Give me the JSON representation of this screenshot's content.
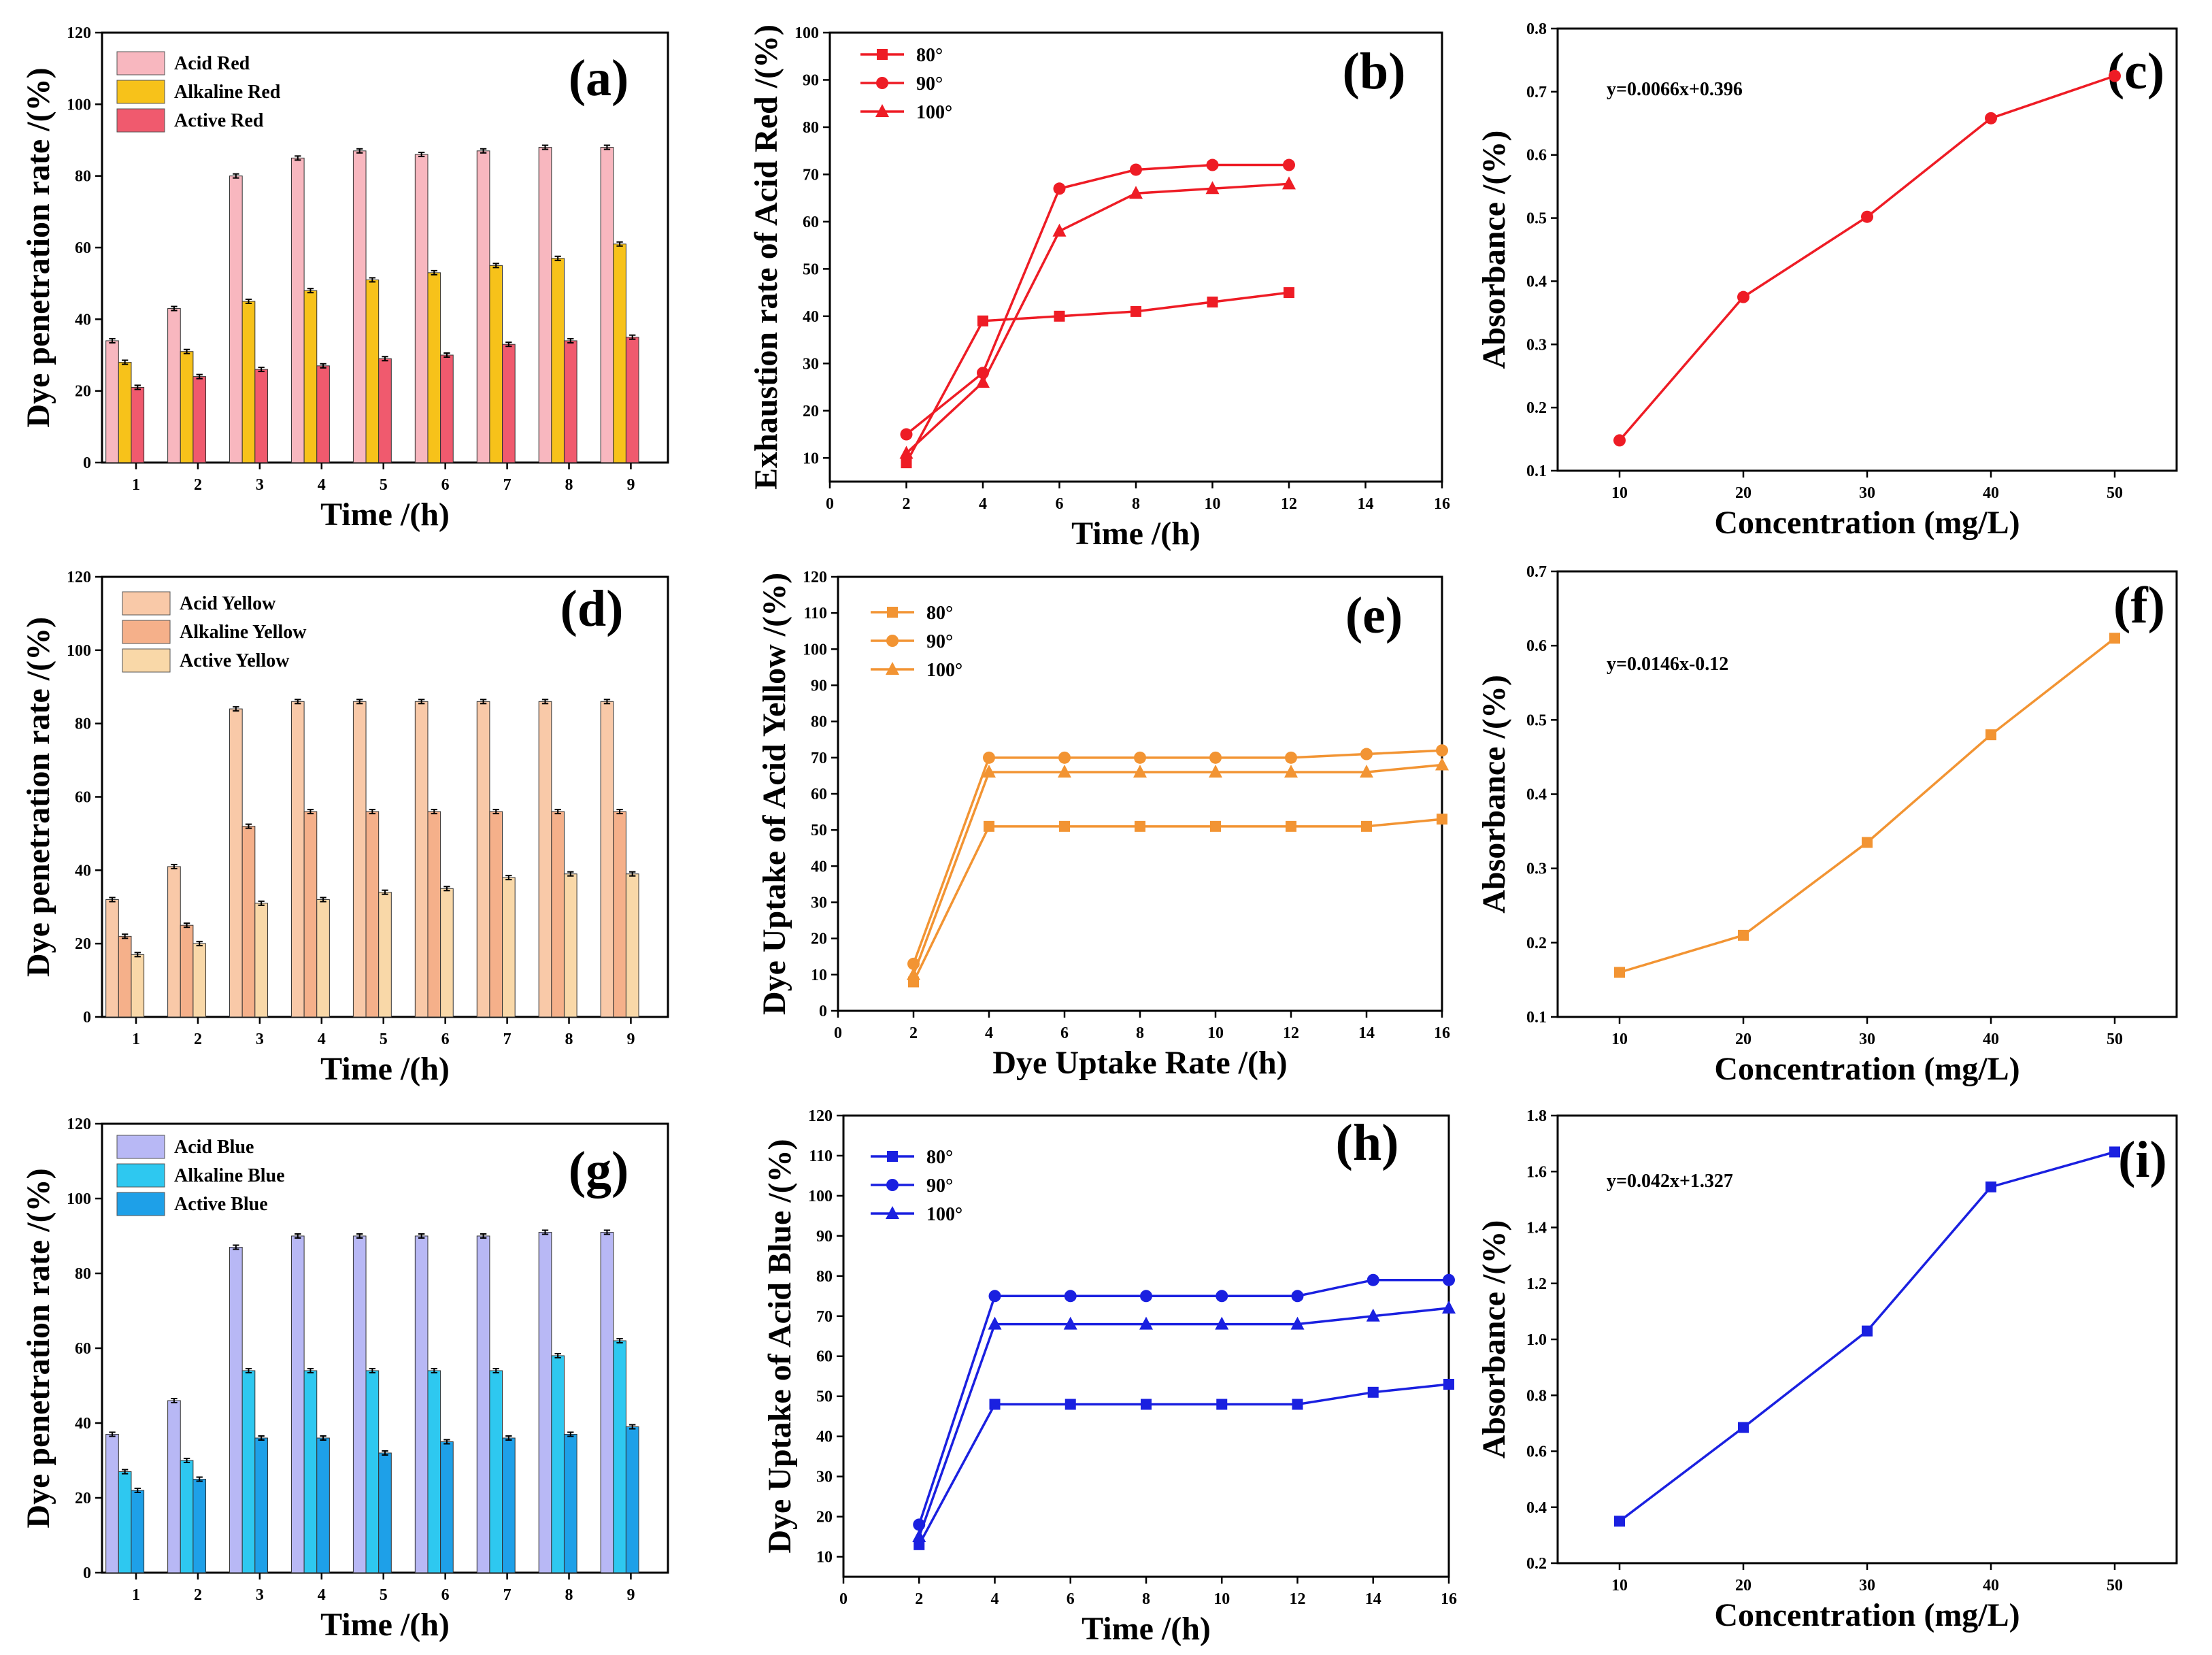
{
  "colors": {
    "red": "#ee1c25",
    "red_light": "#f8b7bf",
    "red_mid": "#f05a6e",
    "yellow": "#f7c21a",
    "orange": "#f29433",
    "orange_light": "#f9c9a8",
    "orange_mid": "#f5b08a",
    "orange_pale": "#f9d8a8",
    "blue": "#1a20e0",
    "blue_light": "#b8b8f5",
    "cyan": "#2ec8f0",
    "blue_mid": "#1ea0e8"
  },
  "chart_data": [
    {
      "id": "a",
      "type": "bar",
      "panel_label": "(a)",
      "categories": [
        "1",
        "2",
        "3",
        "4",
        "5",
        "6",
        "7",
        "8",
        "9"
      ],
      "series": [
        {
          "name": "Acid Red",
          "color_key": "red_light",
          "values": [
            34,
            43,
            80,
            85,
            87,
            86,
            87,
            88,
            88
          ]
        },
        {
          "name": "Alkaline Red",
          "color_key": "yellow",
          "values": [
            28,
            31,
            45,
            48,
            51,
            53,
            55,
            57,
            61
          ]
        },
        {
          "name": "Active Red",
          "color_key": "red_mid",
          "values": [
            21,
            24,
            26,
            27,
            29,
            30,
            33,
            34,
            35
          ]
        }
      ],
      "xlabel": "Time   /(h)",
      "ylabel": "Dye penetration rate   /(%)",
      "ylim": [
        0,
        120
      ],
      "yticks": [
        "0",
        "20",
        "40",
        "60",
        "80",
        "100",
        "120"
      ]
    },
    {
      "id": "b",
      "type": "line",
      "panel_label": "(b)",
      "color_key": "red",
      "series": [
        {
          "name": "80°",
          "marker": "square",
          "x": [
            2,
            4,
            6,
            8,
            10,
            12
          ],
          "values": [
            9,
            39,
            40,
            41,
            43,
            45
          ]
        },
        {
          "name": "90°",
          "marker": "circle",
          "x": [
            2,
            4,
            6,
            8,
            10,
            12
          ],
          "values": [
            15,
            28,
            67,
            71,
            72,
            72
          ]
        },
        {
          "name": "100°",
          "marker": "triangle",
          "x": [
            2,
            4,
            6,
            8,
            10,
            12
          ],
          "values": [
            11,
            26,
            58,
            66,
            67,
            68
          ]
        }
      ],
      "xlabel": "Time  /(h)",
      "ylabel": "Exhaustion rate of Acid Red  /(%)",
      "xlim": [
        0,
        16
      ],
      "xticks": [
        "0",
        "2",
        "4",
        "6",
        "8",
        "10",
        "12",
        "14",
        "16"
      ],
      "ylim": [
        5,
        100
      ],
      "yticks": [
        "10",
        "20",
        "30",
        "40",
        "50",
        "60",
        "70",
        "80",
        "90",
        "100"
      ]
    },
    {
      "id": "c",
      "type": "line",
      "panel_label": "(c)",
      "color_key": "red",
      "series": [
        {
          "name": "",
          "marker": "circle",
          "x": [
            10,
            20,
            30,
            40,
            50
          ],
          "values": [
            0.148,
            0.375,
            0.502,
            0.658,
            0.725
          ]
        }
      ],
      "equation": "y=0.0066x+0.396",
      "xlabel": "Concentration (mg/L)",
      "ylabel": "Absorbance  /(%)",
      "xlim": [
        5,
        55
      ],
      "xticks": [
        "10",
        "20",
        "30",
        "40",
        "50"
      ],
      "ylim": [
        0.1,
        0.8
      ],
      "yticks": [
        "0.1",
        "0.2",
        "0.3",
        "0.4",
        "0.5",
        "0.6",
        "0.7",
        "0.8"
      ]
    },
    {
      "id": "d",
      "type": "bar",
      "panel_label": "(d)",
      "categories": [
        "1",
        "2",
        "3",
        "4",
        "5",
        "6",
        "7",
        "8",
        "9"
      ],
      "series": [
        {
          "name": "Acid Yellow",
          "color_key": "orange_light",
          "values": [
            32,
            41,
            84,
            86,
            86,
            86,
            86,
            86,
            86
          ]
        },
        {
          "name": "Alkaline Yellow",
          "color_key": "orange_mid",
          "values": [
            22,
            25,
            52,
            56,
            56,
            56,
            56,
            56,
            56
          ]
        },
        {
          "name": "Active Yellow",
          "color_key": "orange_pale",
          "values": [
            17,
            20,
            31,
            32,
            34,
            35,
            38,
            39,
            39
          ]
        }
      ],
      "xlabel": "Time  /(h)",
      "ylabel": "Dye penetration rate   /(%)",
      "ylim": [
        0,
        120
      ],
      "yticks": [
        "0",
        "20",
        "40",
        "60",
        "80",
        "100",
        "120"
      ]
    },
    {
      "id": "e",
      "type": "line",
      "panel_label": "(e)",
      "color_key": "orange",
      "series": [
        {
          "name": "80°",
          "marker": "square",
          "x": [
            2,
            4,
            6,
            8,
            10,
            12,
            14,
            16
          ],
          "values": [
            8,
            51,
            51,
            51,
            51,
            51,
            51,
            53
          ]
        },
        {
          "name": "90°",
          "marker": "circle",
          "x": [
            2,
            4,
            6,
            8,
            10,
            12,
            14,
            16
          ],
          "values": [
            13,
            70,
            70,
            70,
            70,
            70,
            71,
            72
          ]
        },
        {
          "name": "100°",
          "marker": "triangle",
          "x": [
            2,
            4,
            6,
            8,
            10,
            12,
            14,
            16
          ],
          "values": [
            10,
            66,
            66,
            66,
            66,
            66,
            66,
            68
          ]
        }
      ],
      "xlabel": "Dye Uptake Rate  /(h)",
      "ylabel": "Dye Uptake of Acid Yellow  /(%)",
      "xlim": [
        0,
        16
      ],
      "xticks": [
        "0",
        "2",
        "4",
        "6",
        "8",
        "10",
        "12",
        "14",
        "16"
      ],
      "ylim": [
        0,
        120
      ],
      "yticks": [
        "0",
        "10",
        "20",
        "30",
        "40",
        "50",
        "60",
        "70",
        "80",
        "90",
        "100",
        "110",
        "120"
      ]
    },
    {
      "id": "f",
      "type": "line",
      "panel_label": "(f)",
      "color_key": "orange",
      "series": [
        {
          "name": "",
          "marker": "square",
          "x": [
            10,
            20,
            30,
            40,
            50
          ],
          "values": [
            0.16,
            0.21,
            0.335,
            0.48,
            0.61
          ]
        }
      ],
      "equation": "y=0.0146x-0.12",
      "xlabel": "Concentration (mg/L)",
      "ylabel": "Absorbance  /(%)",
      "xlim": [
        5,
        55
      ],
      "xticks": [
        "10",
        "20",
        "30",
        "40",
        "50"
      ],
      "ylim": [
        0.1,
        0.7
      ],
      "yticks": [
        "0.1",
        "0.2",
        "0.3",
        "0.4",
        "0.5",
        "0.6",
        "0.7"
      ]
    },
    {
      "id": "g",
      "type": "bar",
      "panel_label": "(g)",
      "categories": [
        "1",
        "2",
        "3",
        "4",
        "5",
        "6",
        "7",
        "8",
        "9"
      ],
      "series": [
        {
          "name": "Acid Blue",
          "color_key": "blue_light",
          "values": [
            37,
            46,
            87,
            90,
            90,
            90,
            90,
            91,
            91
          ]
        },
        {
          "name": "Alkaline Blue",
          "color_key": "cyan",
          "values": [
            27,
            30,
            54,
            54,
            54,
            54,
            54,
            58,
            62
          ]
        },
        {
          "name": "Active Blue",
          "color_key": "blue_mid",
          "values": [
            22,
            25,
            36,
            36,
            32,
            35,
            36,
            37,
            39
          ]
        }
      ],
      "xlabel": "Time  /(h)",
      "ylabel": "Dye penetration rate   /(%)",
      "ylim": [
        0,
        120
      ],
      "yticks": [
        "0",
        "20",
        "40",
        "60",
        "80",
        "100",
        "120"
      ]
    },
    {
      "id": "h",
      "type": "line",
      "panel_label": "(h)",
      "color_key": "blue",
      "series": [
        {
          "name": "80°",
          "marker": "square",
          "x": [
            2,
            4,
            6,
            8,
            10,
            12,
            14,
            16
          ],
          "values": [
            13,
            48,
            48,
            48,
            48,
            48,
            51,
            53
          ]
        },
        {
          "name": "90°",
          "marker": "circle",
          "x": [
            2,
            4,
            6,
            8,
            10,
            12,
            14,
            16
          ],
          "values": [
            18,
            75,
            75,
            75,
            75,
            75,
            79,
            79
          ]
        },
        {
          "name": "100°",
          "marker": "triangle",
          "x": [
            2,
            4,
            6,
            8,
            10,
            12,
            14,
            16
          ],
          "values": [
            15,
            68,
            68,
            68,
            68,
            68,
            70,
            72
          ]
        }
      ],
      "xlabel": "Time  /(h)",
      "ylabel": "Dye Uptake of Acid Blue  /(%)",
      "xlim": [
        0,
        16
      ],
      "xticks": [
        "0",
        "2",
        "4",
        "6",
        "8",
        "10",
        "12",
        "14",
        "16"
      ],
      "ylim": [
        5,
        120
      ],
      "yticks": [
        "10",
        "20",
        "30",
        "40",
        "50",
        "60",
        "70",
        "80",
        "90",
        "100",
        "110",
        "120"
      ]
    },
    {
      "id": "i",
      "type": "line",
      "panel_label": "(i)",
      "color_key": "blue",
      "series": [
        {
          "name": "",
          "marker": "square",
          "x": [
            10,
            20,
            30,
            40,
            50
          ],
          "values": [
            0.35,
            0.685,
            1.03,
            1.545,
            1.67
          ]
        }
      ],
      "equation": "y=0.042x+1.327",
      "xlabel": "Concentration (mg/L)",
      "ylabel": "Absorbance  /(%)",
      "xlim": [
        5,
        55
      ],
      "xticks": [
        "10",
        "20",
        "30",
        "40",
        "50"
      ],
      "ylim": [
        0.2,
        1.8
      ],
      "yticks": [
        "0.2",
        "0.4",
        "0.6",
        "0.8",
        "1.0",
        "1.2",
        "1.4",
        "1.6",
        "1.8"
      ]
    }
  ]
}
